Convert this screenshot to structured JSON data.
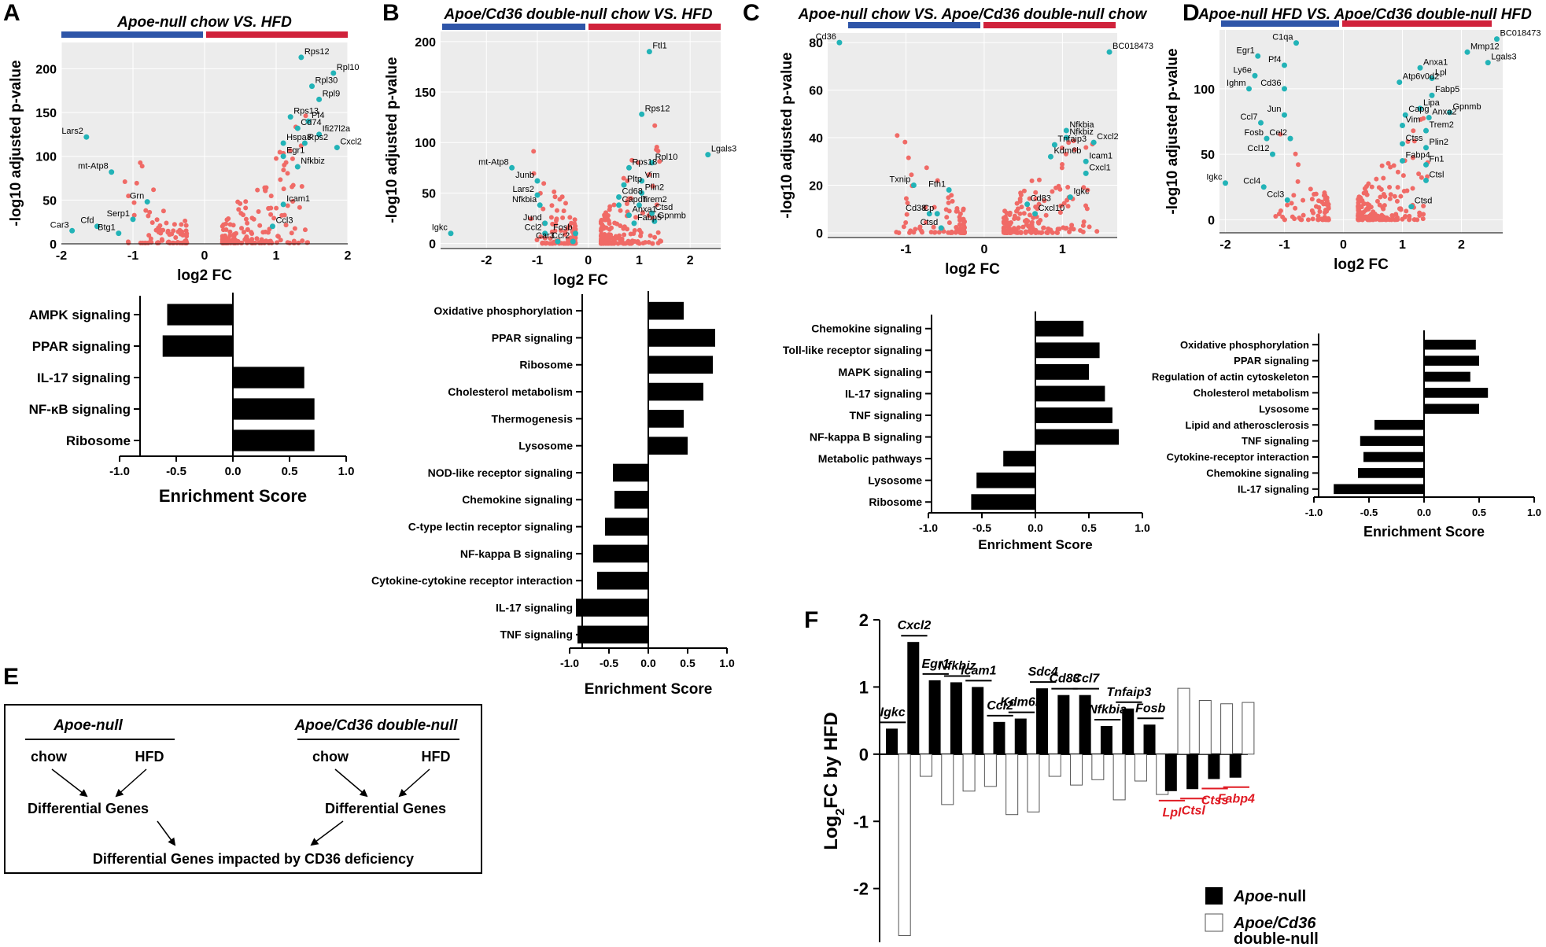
{
  "colors": {
    "accent_blue": "#2e55a8",
    "accent_red": "#d0223b",
    "up_dot": "#f06a66",
    "hi_dot": "#22b3b7",
    "panel_bg": "#ececec",
    "bar": "#000000",
    "red_label": "#e01b24"
  },
  "panels": {
    "A": {
      "letter": "A",
      "title": "Apoe-null chow  VS.  HFD"
    },
    "B": {
      "letter": "B",
      "title": "Apoe/Cd36 double-null chow VS.  HFD"
    },
    "C": {
      "letter": "C",
      "title": "Apoe-null chow VS. Apoe/Cd36 double-null chow"
    },
    "D": {
      "letter": "D",
      "title": "Apoe-null HFD VS. Apoe/Cd36 double-null HFD"
    },
    "E": {
      "letter": "E"
    },
    "F": {
      "letter": "F"
    }
  },
  "chart_data": [
    {
      "id": "A-volcano",
      "type": "scatter",
      "xlabel": "log2 FC",
      "ylabel": "-log10 adjusted p-value",
      "xlim": [
        -2,
        2
      ],
      "ylim": [
        0,
        230
      ],
      "xticks": [
        "-2",
        "-1",
        "0",
        "1",
        "2"
      ],
      "yticks": [
        "0",
        "50",
        "100",
        "150",
        "200"
      ],
      "labeled_points": [
        {
          "label": "Rps12",
          "x": 1.35,
          "y": 213
        },
        {
          "label": "Rpl10",
          "x": 1.8,
          "y": 195
        },
        {
          "label": "Rpl30",
          "x": 1.5,
          "y": 180
        },
        {
          "label": "Rpl9",
          "x": 1.6,
          "y": 165
        },
        {
          "label": "Rps13",
          "x": 1.2,
          "y": 145
        },
        {
          "label": "Pf4",
          "x": 1.45,
          "y": 140
        },
        {
          "label": "Cd74",
          "x": 1.3,
          "y": 132
        },
        {
          "label": "Ifi27l2a",
          "x": 1.6,
          "y": 125
        },
        {
          "label": "Hspa8",
          "x": 1.1,
          "y": 115
        },
        {
          "label": "Rps2",
          "x": 1.4,
          "y": 115
        },
        {
          "label": "Cxcl2",
          "x": 1.85,
          "y": 110
        },
        {
          "label": "Egr1",
          "x": 1.1,
          "y": 100
        },
        {
          "label": "Nfkbiz",
          "x": 1.3,
          "y": 88
        },
        {
          "label": "Icam1",
          "x": 1.1,
          "y": 45
        },
        {
          "label": "Ccl3",
          "x": 0.95,
          "y": 20
        },
        {
          "label": "Lars2",
          "x": -1.65,
          "y": 122
        },
        {
          "label": "mt-Atp8",
          "x": -1.3,
          "y": 82
        },
        {
          "label": "Grn",
          "x": -0.8,
          "y": 48
        },
        {
          "label": "Serp1",
          "x": -1.0,
          "y": 28
        },
        {
          "label": "Cfd",
          "x": -1.5,
          "y": 20
        },
        {
          "label": "Btg1",
          "x": -1.2,
          "y": 12
        },
        {
          "label": "Car3",
          "x": -1.85,
          "y": 15
        }
      ]
    },
    {
      "id": "A-bars",
      "type": "bar",
      "orientation": "horizontal",
      "xlabel": "Enrichment Score",
      "xlim": [
        -1,
        1
      ],
      "xticks": [
        "-1.0",
        "-0.5",
        "0.0",
        "0.5",
        "1.0"
      ],
      "categories": [
        "AMPK signaling",
        "PPAR signaling",
        "IL-17 signaling",
        "NF-κB signaling",
        "Ribosome"
      ],
      "values": [
        -0.58,
        -0.62,
        0.63,
        0.72,
        0.72
      ]
    },
    {
      "id": "B-volcano",
      "type": "scatter",
      "xlabel": "log2 FC",
      "ylabel": "-log10 adjusted p-value",
      "xlim": [
        -2.9,
        2.6
      ],
      "ylim": [
        -5,
        210
      ],
      "xticks": [
        "-2",
        "-1",
        "0",
        "1",
        "2"
      ],
      "yticks": [
        "0",
        "50",
        "100",
        "150",
        "200"
      ],
      "labeled_points": [
        {
          "label": "Ftl1",
          "x": 1.2,
          "y": 190
        },
        {
          "label": "Rps12",
          "x": 1.05,
          "y": 128
        },
        {
          "label": "Lgals3",
          "x": 2.35,
          "y": 88
        },
        {
          "label": "Rpl10",
          "x": 1.25,
          "y": 80
        },
        {
          "label": "Rps18",
          "x": 0.8,
          "y": 75
        },
        {
          "label": "Vim",
          "x": 1.05,
          "y": 62
        },
        {
          "label": "Pltp",
          "x": 0.7,
          "y": 58
        },
        {
          "label": "Plin2",
          "x": 1.05,
          "y": 50
        },
        {
          "label": "Cd68",
          "x": 0.6,
          "y": 46
        },
        {
          "label": "Capdh",
          "x": 0.6,
          "y": 38
        },
        {
          "label": "Trem2",
          "x": 1.0,
          "y": 38
        },
        {
          "label": "Ctsd",
          "x": 1.25,
          "y": 30
        },
        {
          "label": "Anxa1",
          "x": 0.8,
          "y": 28
        },
        {
          "label": "Gpnmb",
          "x": 1.3,
          "y": 22
        },
        {
          "label": "Fabp5",
          "x": 0.9,
          "y": 20
        },
        {
          "label": "mt-Atp8",
          "x": -1.5,
          "y": 75
        },
        {
          "label": "Junb",
          "x": -1.0,
          "y": 62
        },
        {
          "label": "Lars2",
          "x": -1.0,
          "y": 48
        },
        {
          "label": "Nfkbia",
          "x": -0.95,
          "y": 38
        },
        {
          "label": "Jund",
          "x": -0.85,
          "y": 20
        },
        {
          "label": "Fosb",
          "x": -0.25,
          "y": 10
        },
        {
          "label": "Ccl2",
          "x": -0.85,
          "y": 10
        },
        {
          "label": "Car3",
          "x": -0.6,
          "y": 2
        },
        {
          "label": "Ccr2",
          "x": -0.3,
          "y": 2
        },
        {
          "label": "Igkc",
          "x": -2.7,
          "y": 10
        }
      ]
    },
    {
      "id": "B-bars",
      "type": "bar",
      "orientation": "horizontal",
      "xlabel": "Enrichment Score",
      "xlim": [
        -1,
        1
      ],
      "xticks": [
        "-1.0",
        "-0.5",
        "0.0",
        "0.5",
        "1.0"
      ],
      "categories": [
        "Oxidative phosphorylation",
        "PPAR signaling",
        "Ribosome",
        "Cholesterol metabolism",
        "Thermogenesis",
        "Lysosome",
        "NOD-like receptor signaling",
        "Chemokine signaling",
        "C-type lectin receptor signaling",
        "NF-kappa B signaling",
        "Cytokine-cytokine receptor interaction",
        "IL-17 signaling",
        "TNF signaling"
      ],
      "values": [
        0.45,
        0.85,
        0.82,
        0.7,
        0.45,
        0.5,
        -0.45,
        -0.43,
        -0.55,
        -0.7,
        -0.65,
        -0.92,
        -0.9
      ]
    },
    {
      "id": "C-volcano",
      "type": "scatter",
      "xlabel": "log2 FC",
      "ylabel": "-log10 adjusted p-value",
      "xlim": [
        -2,
        1.7
      ],
      "ylim": [
        -2,
        84
      ],
      "xticks": [
        "-1",
        "0",
        "1"
      ],
      "yticks": [
        "0",
        "20",
        "40",
        "60",
        "80"
      ],
      "labeled_points": [
        {
          "label": "Cd36",
          "x": -1.85,
          "y": 80
        },
        {
          "label": "BC018473",
          "x": 1.6,
          "y": 76
        },
        {
          "label": "Nfkbia",
          "x": 1.05,
          "y": 43
        },
        {
          "label": "Nfkbiz",
          "x": 1.05,
          "y": 40
        },
        {
          "label": "Cxcl2",
          "x": 1.4,
          "y": 38
        },
        {
          "label": "Tnfaip3",
          "x": 0.9,
          "y": 37
        },
        {
          "label": "Kdm6b",
          "x": 0.85,
          "y": 32
        },
        {
          "label": "Icam1",
          "x": 1.3,
          "y": 30
        },
        {
          "label": "Cxcl1",
          "x": 1.3,
          "y": 25
        },
        {
          "label": "Igkc",
          "x": 1.1,
          "y": 15
        },
        {
          "label": "Cd83",
          "x": 0.55,
          "y": 12
        },
        {
          "label": "Cxcl10",
          "x": 0.65,
          "y": 8
        },
        {
          "label": "Txnip",
          "x": -0.9,
          "y": 20
        },
        {
          "label": "Fth1",
          "x": -0.45,
          "y": 18
        },
        {
          "label": "Cd38",
          "x": -0.7,
          "y": 8
        },
        {
          "label": "Cp",
          "x": -0.6,
          "y": 8
        },
        {
          "label": "Ctsd",
          "x": -0.55,
          "y": 2
        }
      ]
    },
    {
      "id": "C-bars",
      "type": "bar",
      "orientation": "horizontal",
      "xlabel": "Enrichment Score",
      "xlim": [
        -1,
        1
      ],
      "xticks": [
        "-1.0",
        "-0.5",
        "0.0",
        "0.5",
        "1.0"
      ],
      "categories": [
        "Chemokine signaling",
        "Toll-like receptor signaling",
        "MAPK signaling",
        "IL-17 signaling",
        "TNF signaling",
        "NF-kappa B signaling",
        "Metabolic pathways",
        "Lysosome",
        "Ribosome"
      ],
      "values": [
        0.45,
        0.6,
        0.5,
        0.65,
        0.72,
        0.78,
        -0.3,
        -0.55,
        -0.6
      ]
    },
    {
      "id": "D-volcano",
      "type": "scatter",
      "xlabel": "log2 FC",
      "ylabel": "-log10 adjusted p-value",
      "xlim": [
        -2.1,
        2.7
      ],
      "ylim": [
        -10,
        145
      ],
      "xticks": [
        "-2",
        "-1",
        "0",
        "1",
        "2"
      ],
      "yticks": [
        "0",
        "50",
        "100"
      ],
      "labeled_points": [
        {
          "label": "BC018473",
          "x": 2.6,
          "y": 138
        },
        {
          "label": "Mmp12",
          "x": 2.1,
          "y": 128
        },
        {
          "label": "Lgals3",
          "x": 2.45,
          "y": 120
        },
        {
          "label": "Anxa1",
          "x": 1.3,
          "y": 116
        },
        {
          "label": "Lpl",
          "x": 1.5,
          "y": 108
        },
        {
          "label": "Atp6v0d2",
          "x": 0.95,
          "y": 105
        },
        {
          "label": "Fabp5",
          "x": 1.5,
          "y": 95
        },
        {
          "label": "Gpnmb",
          "x": 1.8,
          "y": 82
        },
        {
          "label": "Lipa",
          "x": 1.3,
          "y": 85
        },
        {
          "label": "Capg",
          "x": 1.05,
          "y": 80
        },
        {
          "label": "Anxa2",
          "x": 1.45,
          "y": 78
        },
        {
          "label": "Vim",
          "x": 1.0,
          "y": 72
        },
        {
          "label": "Trem2",
          "x": 1.4,
          "y": 68
        },
        {
          "label": "Ctss",
          "x": 1.0,
          "y": 58
        },
        {
          "label": "Plin2",
          "x": 1.4,
          "y": 55
        },
        {
          "label": "Fabp4",
          "x": 1.0,
          "y": 45
        },
        {
          "label": "Fn1",
          "x": 1.4,
          "y": 42
        },
        {
          "label": "Ctsl",
          "x": 1.4,
          "y": 30
        },
        {
          "label": "Ctsd",
          "x": 1.15,
          "y": 10
        },
        {
          "label": "C1qa",
          "x": -0.8,
          "y": 135
        },
        {
          "label": "Egr1",
          "x": -1.45,
          "y": 125
        },
        {
          "label": "Pf4",
          "x": -1.0,
          "y": 118
        },
        {
          "label": "Ly6e",
          "x": -1.5,
          "y": 110
        },
        {
          "label": "Ighm",
          "x": -1.6,
          "y": 100
        },
        {
          "label": "Cd36",
          "x": -1.0,
          "y": 100
        },
        {
          "label": "Jun",
          "x": -1.0,
          "y": 80
        },
        {
          "label": "Ccl7",
          "x": -1.4,
          "y": 74
        },
        {
          "label": "Fosb",
          "x": -1.3,
          "y": 62
        },
        {
          "label": "Cel2",
          "x": -0.9,
          "y": 62
        },
        {
          "label": "Ccl12",
          "x": -1.2,
          "y": 50
        },
        {
          "label": "Igkc",
          "x": -2.0,
          "y": 28
        },
        {
          "label": "Ccl4",
          "x": -1.35,
          "y": 25
        },
        {
          "label": "Ccl3",
          "x": -0.95,
          "y": 15
        }
      ]
    },
    {
      "id": "D-bars",
      "type": "bar",
      "orientation": "horizontal",
      "xlabel": "Enrichment Score",
      "xlim": [
        -1,
        1
      ],
      "xticks": [
        "-1.0",
        "-0.5",
        "0.0",
        "0.5",
        "1.0"
      ],
      "categories": [
        "Oxidative phosphorylation",
        "PPAR signaling",
        "Regulation of actin cytoskeleton",
        "Cholesterol metabolism",
        "Lysosome",
        "Lipid and atherosclerosis",
        "TNF signaling",
        "Cytokine-receptor interaction",
        "Chemokine signaling",
        "IL-17 signaling"
      ],
      "values": [
        0.47,
        0.5,
        0.42,
        0.58,
        0.5,
        -0.45,
        -0.58,
        -0.55,
        -0.6,
        -0.82
      ]
    },
    {
      "id": "F-bars",
      "type": "bar",
      "ylabel": "Log2FC by HFD",
      "ylim": [
        -2.8,
        2
      ],
      "yticks": [
        "-2",
        "-1",
        "0",
        "1",
        "2"
      ],
      "categories": [
        "Igkc",
        "Cxcl2",
        "Egr1",
        "Nfkbiz",
        "Icam1",
        "Ccl2",
        "Kdm6b",
        "Sdc4",
        "Cd83",
        "Ccl7",
        "Nfkbia",
        "Tnfaip3",
        "Fosb",
        "Lpl",
        "Ctsl",
        "Ctss",
        "Fabp4"
      ],
      "red_categories": [
        "Lpl",
        "Ctsl",
        "Ctss",
        "Fabp4"
      ],
      "series": [
        {
          "name": "Apoe-null",
          "values": [
            0.38,
            1.67,
            1.1,
            1.07,
            1.0,
            0.48,
            0.53,
            0.98,
            0.88,
            0.88,
            0.42,
            0.68,
            0.44,
            -0.55,
            -0.52,
            -0.37,
            -0.35
          ]
        },
        {
          "name": "Apoe/Cd36 double-null",
          "values": [
            -2.7,
            -0.33,
            -0.75,
            -0.55,
            -0.48,
            -0.9,
            -0.86,
            -0.33,
            -0.46,
            -0.38,
            -0.68,
            -0.4,
            -0.6,
            0.98,
            0.8,
            0.75,
            0.77
          ]
        }
      ],
      "legend": [
        {
          "name": "Apoe-null",
          "sub": ""
        },
        {
          "name": "Apoe/Cd36",
          "sub": "double-null"
        }
      ]
    }
  ],
  "diagram": {
    "left_group": "Apoe-null",
    "right_group": "Apoe/Cd36 double-null",
    "chow": "chow",
    "hfd": "HFD",
    "diff_genes": "Differential Genes",
    "result": "Differential Genes impacted by CD36 deficiency"
  }
}
